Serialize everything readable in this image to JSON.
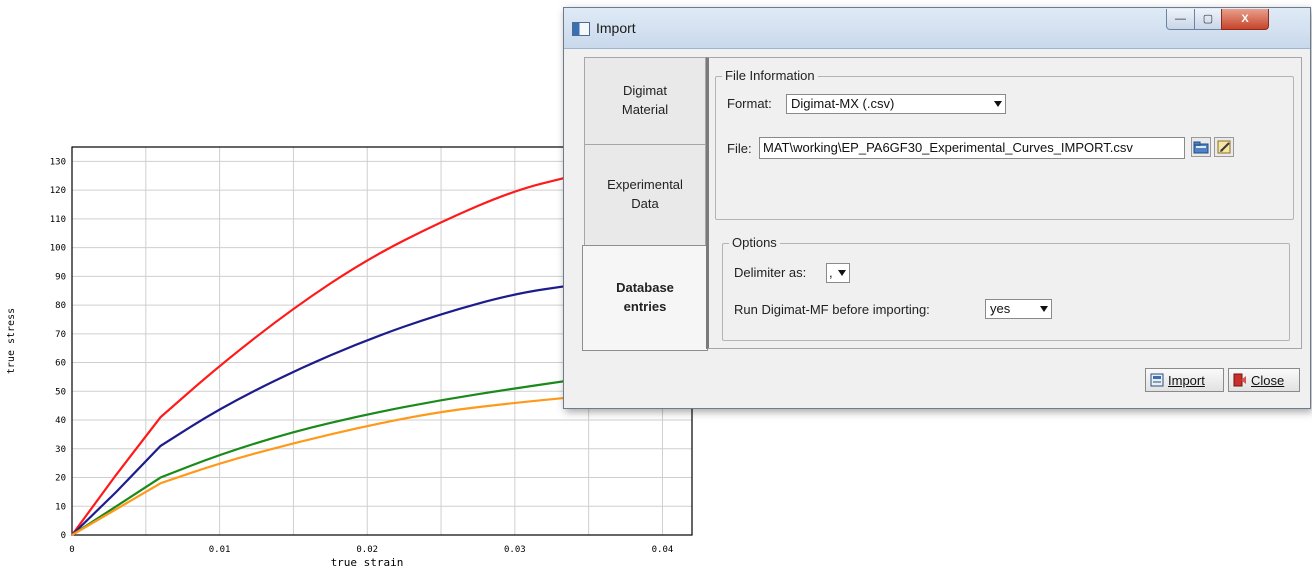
{
  "chart_data": {
    "type": "line",
    "xlabel": "true strain",
    "ylabel": "true stress",
    "xlim": [
      0,
      0.042
    ],
    "ylim": [
      0,
      135
    ],
    "x_ticks": [
      "0",
      "0.01",
      "0.02",
      "0.03",
      "0.04"
    ],
    "x_tick_values": [
      0,
      0.01,
      0.02,
      0.03,
      0.04
    ],
    "y_ticks": [
      "0",
      "10",
      "20",
      "30",
      "40",
      "50",
      "60",
      "70",
      "80",
      "90",
      "100",
      "110",
      "120",
      "130"
    ],
    "y_tick_values": [
      0,
      10,
      20,
      30,
      40,
      50,
      60,
      70,
      80,
      90,
      100,
      110,
      120,
      130
    ],
    "grid": true,
    "series": [
      {
        "color": "#ff1a1a",
        "x": [
          0,
          0.003,
          0.006,
          0.01,
          0.015,
          0.02,
          0.025,
          0.03,
          0.034
        ],
        "y": [
          0,
          21,
          41,
          59,
          79,
          96,
          109,
          120,
          125
        ]
      },
      {
        "color": "#1c1c8c",
        "x": [
          0,
          0.003,
          0.006,
          0.01,
          0.015,
          0.02,
          0.025,
          0.03,
          0.034
        ],
        "y": [
          0,
          15,
          31,
          44,
          57,
          68,
          77,
          84,
          87
        ]
      },
      {
        "color": "#1a8a1a",
        "x": [
          0,
          0.003,
          0.006,
          0.01,
          0.015,
          0.02,
          0.025,
          0.03,
          0.034
        ],
        "y": [
          0,
          10,
          20,
          28,
          36,
          42,
          47,
          51,
          54
        ]
      },
      {
        "color": "#ff9919",
        "x": [
          0,
          0.003,
          0.006,
          0.01,
          0.015,
          0.02,
          0.025,
          0.03,
          0.034
        ],
        "y": [
          0,
          9,
          18,
          25,
          32,
          38,
          43,
          46,
          48
        ]
      }
    ]
  },
  "dialog": {
    "title": "Import",
    "window_buttons": {
      "minimize": "—",
      "maximize": "▢",
      "close": "X"
    },
    "tabs": [
      {
        "label": "Digimat\nMaterial"
      },
      {
        "label": "Experimental\nData"
      },
      {
        "label": "Database\nentries"
      }
    ],
    "file_information": {
      "legend": "File Information",
      "format_label": "Format:",
      "format_value": "Digimat-MX (.csv)",
      "file_label": "File:",
      "file_value": "MAT\\working\\EP_PA6GF30_Experimental_Curves_IMPORT.csv"
    },
    "options": {
      "legend": "Options",
      "delimiter_label": "Delimiter as:",
      "delimiter_value": ",",
      "run_label": "Run Digimat-MF before importing:",
      "run_value": "yes"
    },
    "buttons": {
      "import_label": "Import",
      "close_label": "Close"
    }
  }
}
